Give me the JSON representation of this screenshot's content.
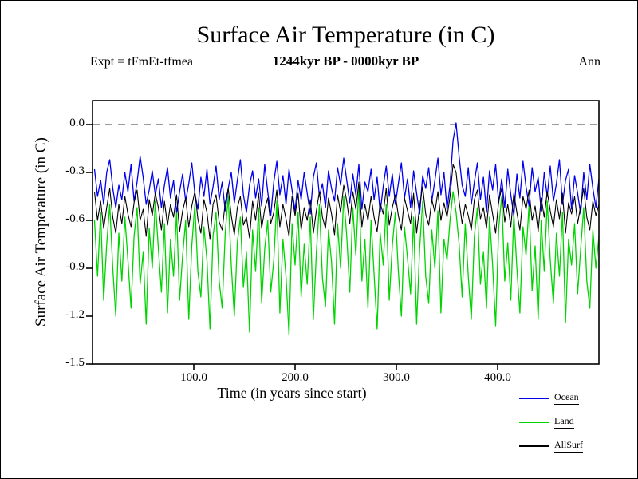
{
  "chart_data": {
    "type": "line",
    "title": "Surface Air Temperature (in C)",
    "subtitle": "1244kyr BP - 0000kyr BP",
    "annotations": {
      "expt": "Expt = tFmEt-tfmea",
      "season": "Ann"
    },
    "xlabel": "Time (in years since start)",
    "ylabel": "Surface Air Temperature (in C)",
    "xlim": [
      0,
      500
    ],
    "ylim": [
      -1.5,
      0.15
    ],
    "grid": false,
    "zero_line": 0.0,
    "zero_line_style": "dashed",
    "legend_position": "bottom-right",
    "xticks": [
      100,
      200,
      300,
      400
    ],
    "xtick_labels": [
      "100.0",
      "200.0",
      "300.0",
      "400.0"
    ],
    "yticks": [
      0.0,
      -0.3,
      -0.6,
      -0.9,
      -1.2,
      -1.5
    ],
    "ytick_labels": [
      "0.0",
      "-0.3",
      "-0.6",
      "-0.9",
      "-1.2",
      "-1.5"
    ],
    "x_start": 2,
    "x_step": 3,
    "series": [
      {
        "name": "Ocean",
        "color": "#0000ee",
        "values": [
          -0.28,
          -0.45,
          -0.35,
          -0.5,
          -0.3,
          -0.22,
          -0.4,
          -0.52,
          -0.38,
          -0.47,
          -0.3,
          -0.42,
          -0.25,
          -0.48,
          -0.36,
          -0.2,
          -0.33,
          -0.5,
          -0.41,
          -0.29,
          -0.44,
          -0.34,
          -0.52,
          -0.38,
          -0.27,
          -0.46,
          -0.35,
          -0.55,
          -0.42,
          -0.31,
          -0.48,
          -0.37,
          -0.24,
          -0.43,
          -0.53,
          -0.33,
          -0.45,
          -0.28,
          -0.5,
          -0.39,
          -0.26,
          -0.47,
          -0.36,
          -0.54,
          -0.4,
          -0.3,
          -0.49,
          -0.35,
          -0.22,
          -0.44,
          -0.55,
          -0.38,
          -0.29,
          -0.46,
          -0.34,
          -0.51,
          -0.25,
          -0.42,
          -0.57,
          -0.36,
          -0.23,
          -0.44,
          -0.32,
          -0.5,
          -0.28,
          -0.41,
          -0.54,
          -0.35,
          -0.47,
          -0.3,
          -0.43,
          -0.56,
          -0.33,
          -0.24,
          -0.45,
          -0.37,
          -0.52,
          -0.29,
          -0.4,
          -0.48,
          -0.27,
          -0.38,
          -0.21,
          -0.35,
          -0.49,
          -0.31,
          -0.44,
          -0.25,
          -0.53,
          -0.36,
          -0.42,
          -0.28,
          -0.47,
          -0.33,
          -0.55,
          -0.39,
          -0.26,
          -0.45,
          -0.31,
          -0.5,
          -0.37,
          -0.24,
          -0.46,
          -0.34,
          -0.52,
          -0.29,
          -0.43,
          -0.56,
          -0.32,
          -0.4,
          -0.27,
          -0.48,
          -0.35,
          -0.21,
          -0.44,
          -0.3,
          -0.53,
          -0.38,
          -0.1,
          0.01,
          -0.2,
          -0.38,
          -0.45,
          -0.27,
          -0.5,
          -0.36,
          -0.24,
          -0.47,
          -0.33,
          -0.55,
          -0.29,
          -0.41,
          -0.25,
          -0.49,
          -0.34,
          -0.52,
          -0.28,
          -0.44,
          -0.57,
          -0.31,
          -0.46,
          -0.23,
          -0.39,
          -0.51,
          -0.27,
          -0.42,
          -0.33,
          -0.54,
          -0.3,
          -0.45,
          -0.26,
          -0.48,
          -0.37,
          -0.22,
          -0.5,
          -0.35,
          -0.28,
          -0.53,
          -0.32,
          -0.43,
          -0.56,
          -0.3,
          -0.47,
          -0.25,
          -0.4,
          -0.52,
          -0.34
        ]
      },
      {
        "name": "Land",
        "color": "#00d400",
        "values": [
          -0.6,
          -0.95,
          -0.55,
          -1.1,
          -0.75,
          -0.5,
          -0.9,
          -1.2,
          -0.68,
          -0.98,
          -0.58,
          -0.85,
          -1.15,
          -0.7,
          -0.52,
          -1.0,
          -0.8,
          -1.25,
          -0.65,
          -0.9,
          -0.48,
          -0.78,
          -1.05,
          -0.62,
          -1.18,
          -0.72,
          -0.95,
          -0.55,
          -1.1,
          -0.82,
          -0.6,
          -1.22,
          -0.76,
          -0.5,
          -0.92,
          -1.08,
          -0.64,
          -0.85,
          -1.28,
          -0.7,
          -0.55,
          -0.98,
          -1.15,
          -0.68,
          -0.45,
          -0.88,
          -1.2,
          -0.74,
          -0.58,
          -1.02,
          -0.8,
          -1.3,
          -0.66,
          -0.92,
          -0.52,
          -1.12,
          -0.78,
          -0.6,
          -1.05,
          -0.85,
          -0.48,
          -1.18,
          -0.72,
          -0.95,
          -1.32,
          -0.62,
          -0.88,
          -0.55,
          -1.08,
          -0.75,
          -1.0,
          -0.58,
          -1.22,
          -0.8,
          -0.5,
          -0.96,
          -1.14,
          -0.66,
          -0.86,
          -1.25,
          -0.62,
          -0.9,
          -0.45,
          -0.7,
          -1.05,
          -0.52,
          -0.82,
          -0.38,
          -0.98,
          -0.72,
          -1.15,
          -0.6,
          -0.94,
          -1.28,
          -0.68,
          -0.88,
          -0.5,
          -1.1,
          -0.76,
          -0.55,
          -0.92,
          -1.2,
          -0.64,
          -0.84,
          -1.06,
          -0.58,
          -1.25,
          -0.78,
          -0.48,
          -0.95,
          -1.12,
          -0.66,
          -0.9,
          -0.54,
          -1.18,
          -0.72,
          -0.85,
          -0.6,
          -0.42,
          -0.55,
          -0.75,
          -1.08,
          -0.62,
          -0.95,
          -1.22,
          -0.7,
          -0.52,
          -1.0,
          -0.8,
          -1.15,
          -0.58,
          -0.88,
          -1.26,
          -0.65,
          -0.45,
          -0.98,
          -0.74,
          -1.1,
          -0.56,
          -0.9,
          -1.18,
          -0.64,
          -0.82,
          -0.5,
          -1.04,
          -0.76,
          -1.22,
          -0.6,
          -0.92,
          -0.48,
          -0.85,
          -1.12,
          -0.68,
          -0.95,
          -0.55,
          -1.24,
          -0.72,
          -0.88,
          -0.62,
          -1.06,
          -0.78,
          -0.52,
          -0.98,
          -1.15,
          -0.66,
          -0.9,
          -0.7
        ]
      },
      {
        "name": "AllSurf",
        "color": "#000000",
        "values": [
          -0.42,
          -0.6,
          -0.48,
          -0.65,
          -0.52,
          -0.4,
          -0.58,
          -0.68,
          -0.5,
          -0.62,
          -0.45,
          -0.56,
          -0.64,
          -0.49,
          -0.41,
          -0.6,
          -0.53,
          -0.7,
          -0.47,
          -0.57,
          -0.43,
          -0.52,
          -0.66,
          -0.48,
          -0.63,
          -0.5,
          -0.58,
          -0.44,
          -0.67,
          -0.54,
          -0.46,
          -0.64,
          -0.51,
          -0.42,
          -0.59,
          -0.68,
          -0.47,
          -0.55,
          -0.72,
          -0.5,
          -0.44,
          -0.61,
          -0.66,
          -0.49,
          -0.4,
          -0.57,
          -0.69,
          -0.52,
          -0.45,
          -0.63,
          -0.58,
          -0.71,
          -0.48,
          -0.6,
          -0.43,
          -0.65,
          -0.53,
          -0.46,
          -0.62,
          -0.55,
          -0.41,
          -0.64,
          -0.5,
          -0.59,
          -0.7,
          -0.45,
          -0.57,
          -0.43,
          -0.66,
          -0.52,
          -0.6,
          -0.47,
          -0.68,
          -0.54,
          -0.42,
          -0.58,
          -0.65,
          -0.46,
          -0.56,
          -0.69,
          -0.44,
          -0.55,
          -0.38,
          -0.48,
          -0.62,
          -0.42,
          -0.53,
          -0.36,
          -0.64,
          -0.5,
          -0.6,
          -0.45,
          -0.58,
          -0.67,
          -0.49,
          -0.56,
          -0.4,
          -0.63,
          -0.52,
          -0.44,
          -0.57,
          -0.66,
          -0.46,
          -0.54,
          -0.62,
          -0.43,
          -0.68,
          -0.51,
          -0.39,
          -0.56,
          -0.63,
          -0.47,
          -0.55,
          -0.42,
          -0.6,
          -0.49,
          -0.58,
          -0.45,
          -0.25,
          -0.3,
          -0.48,
          -0.62,
          -0.5,
          -0.57,
          -0.66,
          -0.47,
          -0.41,
          -0.59,
          -0.52,
          -0.65,
          -0.44,
          -0.56,
          -0.68,
          -0.48,
          -0.4,
          -0.61,
          -0.5,
          -0.64,
          -0.43,
          -0.55,
          -0.66,
          -0.45,
          -0.53,
          -0.41,
          -0.6,
          -0.51,
          -0.67,
          -0.46,
          -0.58,
          -0.42,
          -0.54,
          -0.64,
          -0.47,
          -0.59,
          -0.43,
          -0.68,
          -0.49,
          -0.56,
          -0.45,
          -0.62,
          -0.51,
          -0.4,
          -0.58,
          -0.66,
          -0.48,
          -0.57,
          -0.5
        ]
      }
    ]
  }
}
